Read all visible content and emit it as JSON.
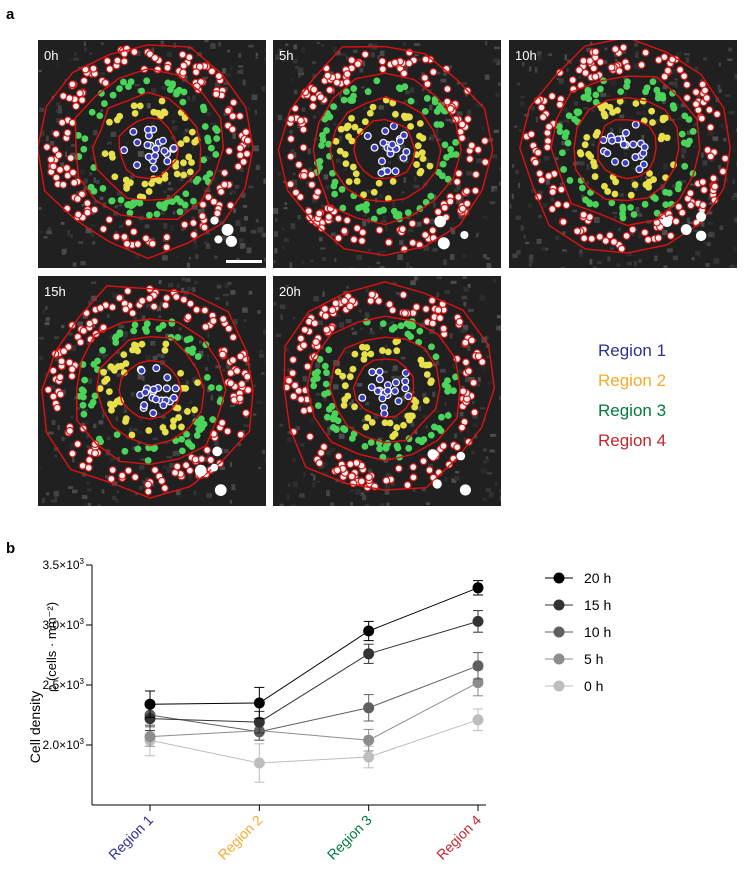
{
  "panel_a": {
    "letter": "a",
    "images": [
      {
        "time": "0h",
        "scale_bar": true
      },
      {
        "time": "5h",
        "scale_bar": false
      },
      {
        "time": "10h",
        "scale_bar": false
      },
      {
        "time": "15h",
        "scale_bar": false
      },
      {
        "time": "20h",
        "scale_bar": false
      }
    ],
    "legend": [
      {
        "label": "Region 1",
        "color": "#2e3192"
      },
      {
        "label": "Region 2",
        "color": "#f7a92b"
      },
      {
        "label": "Region 3",
        "color": "#007a3d"
      },
      {
        "label": "Region 4",
        "color": "#c1272d"
      }
    ]
  },
  "panel_b": {
    "letter": "b",
    "chart_data": {
      "type": "line",
      "title": "",
      "ylabel": "Cell density",
      "ylabel_symbol": "ρ (cells · mm⁻²)",
      "ylim": [
        1500,
        3500
      ],
      "yticks": [
        {
          "value": 2000,
          "mantissa": "2.0×10",
          "exp": "3"
        },
        {
          "value": 2500,
          "mantissa": "2.5×10",
          "exp": "3"
        },
        {
          "value": 3000,
          "mantissa": "3.0×10",
          "exp": "3"
        },
        {
          "value": 3500,
          "mantissa": "3.5×10",
          "exp": "3"
        }
      ],
      "categories": [
        "Region 1",
        "Region 2",
        "Region 3",
        "Region 4"
      ],
      "category_colors": [
        "#2e3192",
        "#f7a92b",
        "#007a3d",
        "#c1272d"
      ],
      "legend_position": "right",
      "series": [
        {
          "name": "20 h",
          "color": "#000000",
          "values": [
            2340,
            2350,
            2950,
            3310
          ],
          "errors": [
            110,
            130,
            80,
            60
          ]
        },
        {
          "name": "15 h",
          "color": "#333333",
          "values": [
            2220,
            2190,
            2760,
            3030
          ],
          "errors": [
            100,
            90,
            80,
            90
          ]
        },
        {
          "name": "10 h",
          "color": "#5f5f5f",
          "values": [
            2250,
            2110,
            2310,
            2660
          ],
          "errors": [
            90,
            70,
            110,
            110
          ]
        },
        {
          "name": "5 h",
          "color": "#8c8c8c",
          "values": [
            2070,
            2120,
            2040,
            2520
          ],
          "errors": [
            80,
            80,
            90,
            110
          ]
        },
        {
          "name": "0 h",
          "color": "#bdbdbd",
          "values": [
            2040,
            1850,
            1900,
            2210
          ],
          "errors": [
            130,
            160,
            90,
            90
          ]
        }
      ]
    }
  }
}
